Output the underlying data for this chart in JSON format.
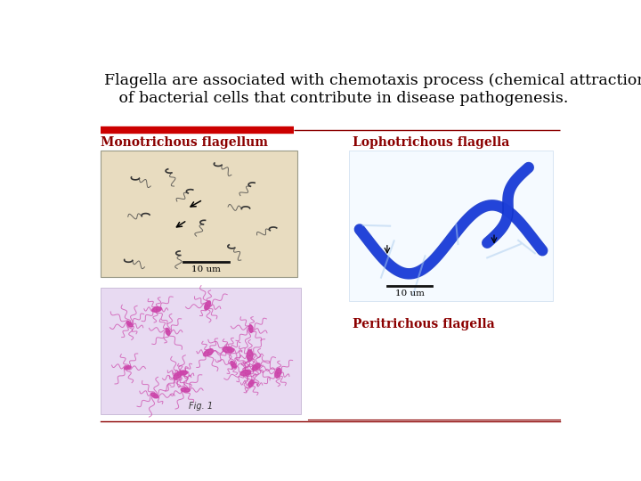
{
  "background_color": "#ffffff",
  "title_line1": "Flagella are associated with chemotaxis process (chemical attraction)",
  "title_line2": "   of bacterial cells that contribute in disease pathogenesis.",
  "title_fontsize": 12.5,
  "title_color": "#000000",
  "label_color": "#8b0000",
  "label_fontsize": 10,
  "label1": "Monotrichous flagellum",
  "label2": "Lophotrichous flagella",
  "label3": "Peritrichous flagella",
  "divider_red_color": "#cc0000",
  "divider_thin_color": "#8b0000",
  "img1_bg": "#e8dcc0",
  "img2_bg": "#ddeeff",
  "img3_bg": "#e8d8ee",
  "bottom_line_color": "#8b0000",
  "scale_bar_color": "#111111"
}
